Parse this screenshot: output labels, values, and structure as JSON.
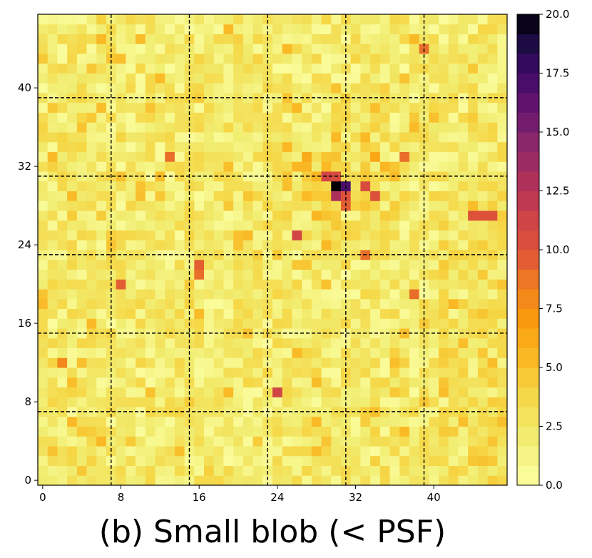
{
  "chart_data": {
    "type": "heatmap",
    "title": "(b) Small blob (< PSF)",
    "rows": 48,
    "cols": 48,
    "x_ticks": [
      0,
      8,
      16,
      24,
      32,
      40
    ],
    "y_ticks": [
      0,
      8,
      16,
      24,
      32,
      40
    ],
    "grid_dashed_every": 8,
    "colormap": "inferno_r",
    "colorbar_range": [
      0.0,
      20.0
    ],
    "colorbar_ticks": [
      "0.0",
      "2.5",
      "5.0",
      "7.5",
      "10.0",
      "12.5",
      "15.0",
      "17.5",
      "20.0"
    ],
    "colorbar_levels": 24,
    "peak": {
      "row": 30,
      "col": 30,
      "value": 20.0
    },
    "hotspots": [
      {
        "row": 30,
        "col": 31,
        "value": 17.0
      },
      {
        "row": 29,
        "col": 30,
        "value": 13.0
      },
      {
        "row": 29,
        "col": 31,
        "value": 10.0
      },
      {
        "row": 31,
        "col": 29,
        "value": 11.0
      },
      {
        "row": 31,
        "col": 30,
        "value": 10.5
      },
      {
        "row": 30,
        "col": 33,
        "value": 10.5
      },
      {
        "row": 29,
        "col": 34,
        "value": 10.0
      },
      {
        "row": 28,
        "col": 31,
        "value": 9.5
      },
      {
        "row": 25,
        "col": 26,
        "value": 11.0
      },
      {
        "row": 9,
        "col": 24,
        "value": 11.0
      },
      {
        "row": 20,
        "col": 8,
        "value": 9.5
      },
      {
        "row": 27,
        "col": 44,
        "value": 10.0
      },
      {
        "row": 27,
        "col": 45,
        "value": 10.0
      },
      {
        "row": 27,
        "col": 46,
        "value": 10.0
      },
      {
        "row": 22,
        "col": 16,
        "value": 9.5
      },
      {
        "row": 21,
        "col": 16,
        "value": 9.0
      },
      {
        "row": 19,
        "col": 38,
        "value": 9.0
      },
      {
        "row": 33,
        "col": 13,
        "value": 9.0
      },
      {
        "row": 33,
        "col": 37,
        "value": 9.0
      },
      {
        "row": 44,
        "col": 39,
        "value": 9.0
      },
      {
        "row": 23,
        "col": 33,
        "value": 9.0
      },
      {
        "row": 12,
        "col": 2,
        "value": 8.0
      }
    ]
  }
}
